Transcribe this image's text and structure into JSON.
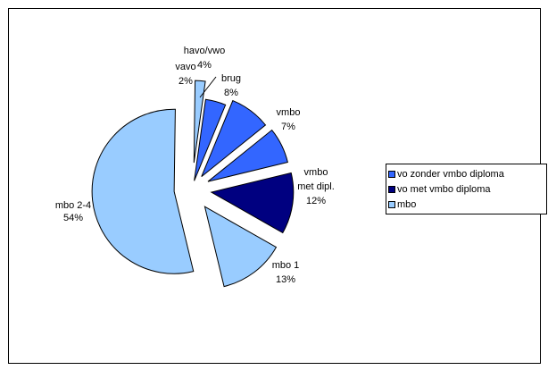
{
  "chart_data": {
    "type": "pie",
    "title": "",
    "slices": [
      {
        "label": [
          "havo/vwo",
          "4%"
        ],
        "value": 4,
        "color": "#3366ff"
      },
      {
        "label": [
          "brug",
          "8%"
        ],
        "value": 8,
        "color": "#3366ff"
      },
      {
        "label": [
          "vmbo",
          "7%"
        ],
        "value": 7,
        "color": "#3366ff"
      },
      {
        "label": [
          "vmbo",
          "met dipl.",
          "12%"
        ],
        "value": 12,
        "color": "#000080"
      },
      {
        "label": [
          "mbo 1",
          "13%"
        ],
        "value": 13,
        "color": "#99ccff"
      },
      {
        "label": [
          "mbo 2-4",
          "",
          "54%"
        ],
        "value": 54,
        "color": "#99ccff"
      },
      {
        "label": [
          "vavo",
          "2%"
        ],
        "value": 2,
        "color": "#99ccff"
      }
    ],
    "exploded": true,
    "legend_position": "right",
    "legend": [
      {
        "label": "vo zonder vmbo diploma",
        "color": "#3366ff"
      },
      {
        "label": "vo met vmbo diploma",
        "color": "#000080"
      },
      {
        "label": "mbo",
        "color": "#99ccff"
      }
    ]
  }
}
